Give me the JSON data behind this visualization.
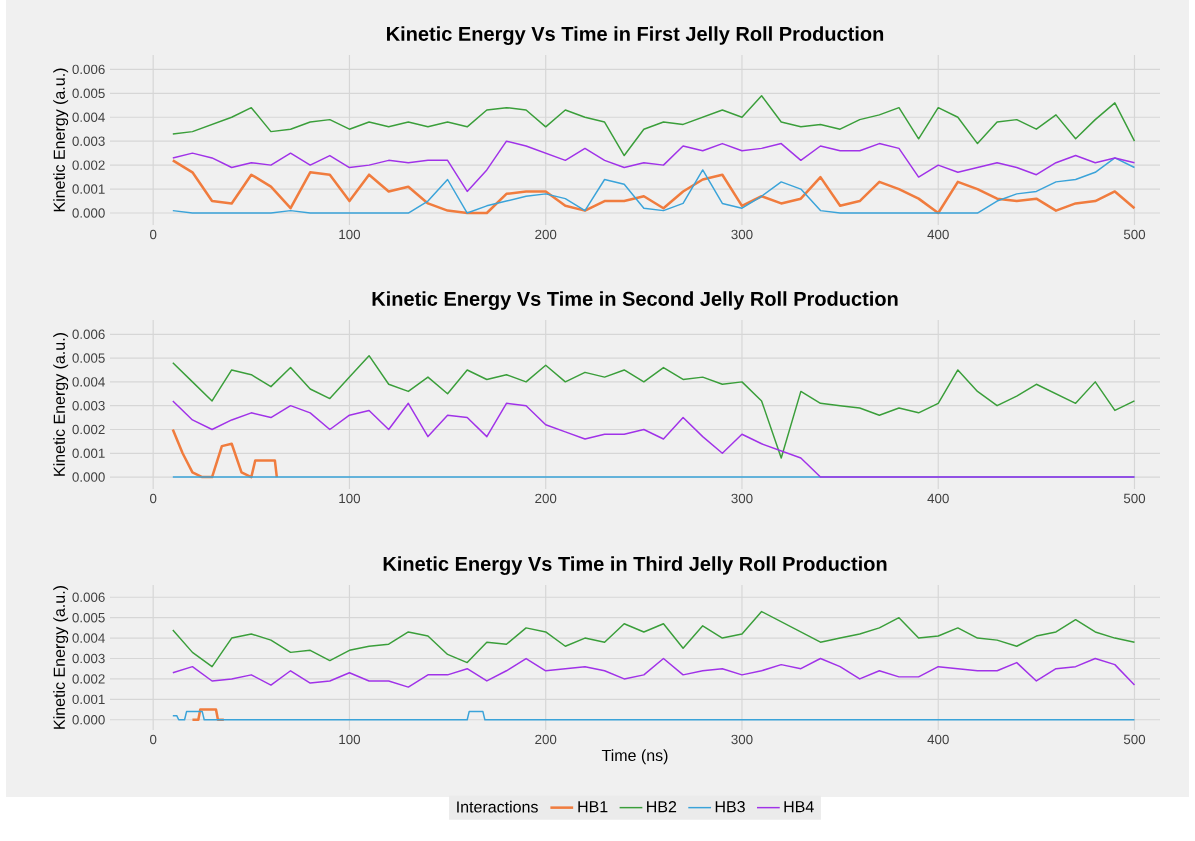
{
  "chart_data": [
    {
      "type": "line",
      "title": "Kinetic Energy Vs Time in First Jelly Roll Production",
      "ylabel": "Kinetic Energy (a.u.)",
      "grid": true,
      "xlim": [
        -22,
        513
      ],
      "ylim": [
        -0.0005,
        0.0066
      ],
      "xticks": [
        0,
        100,
        200,
        300,
        400,
        500
      ],
      "yticks": [
        {
          "value": 0,
          "label": "0.000"
        },
        {
          "value": 0.001,
          "label": "0.001"
        },
        {
          "value": 0.002,
          "label": "0.002"
        },
        {
          "value": 0.003,
          "label": "0.003"
        },
        {
          "value": 0.004,
          "label": "0.004"
        },
        {
          "value": 0.005,
          "label": "0.005"
        },
        {
          "value": 0.006,
          "label": "0.006"
        }
      ],
      "x": [
        10,
        20,
        30,
        40,
        50,
        60,
        70,
        80,
        90,
        100,
        110,
        120,
        130,
        140,
        150,
        160,
        170,
        180,
        190,
        200,
        210,
        220,
        230,
        240,
        250,
        260,
        270,
        280,
        290,
        300,
        310,
        320,
        330,
        340,
        350,
        360,
        370,
        380,
        390,
        400,
        410,
        420,
        430,
        440,
        450,
        460,
        470,
        480,
        490,
        500
      ],
      "series": [
        {
          "color": "#f07c3e",
          "values": [
            0.0022,
            0.0017,
            0.0005,
            0.0004,
            0.0016,
            0.0011,
            0.0002,
            0.0017,
            0.0016,
            0.0005,
            0.0016,
            0.0009,
            0.0011,
            0.0004,
            0.0001,
            0.0,
            0.0,
            0.0008,
            0.0009,
            0.0009,
            0.0003,
            0.0001,
            0.0005,
            0.0005,
            0.0007,
            0.0002,
            0.0009,
            0.0014,
            0.0016,
            0.0003,
            0.0007,
            0.0004,
            0.0006,
            0.0015,
            0.0003,
            0.0005,
            0.0013,
            0.001,
            0.0006,
            0.0,
            0.0013,
            0.001,
            0.0006,
            0.0005,
            0.0006,
            0.0001,
            0.0004,
            0.0005,
            0.0009,
            0.0002
          ]
        },
        {
          "color": "#3a9e3a",
          "values": [
            0.0033,
            0.0034,
            0.0037,
            0.004,
            0.0044,
            0.0034,
            0.0035,
            0.0038,
            0.0039,
            0.0035,
            0.0038,
            0.0036,
            0.0038,
            0.0036,
            0.0038,
            0.0036,
            0.0043,
            0.0044,
            0.0043,
            0.0036,
            0.0043,
            0.004,
            0.0038,
            0.0024,
            0.0035,
            0.0038,
            0.0037,
            0.004,
            0.0043,
            0.004,
            0.0049,
            0.0038,
            0.0036,
            0.0037,
            0.0035,
            0.0039,
            0.0041,
            0.0044,
            0.0031,
            0.0044,
            0.004,
            0.0029,
            0.0038,
            0.0039,
            0.0035,
            0.0041,
            0.0031,
            0.0039,
            0.0046,
            0.003
          ]
        },
        {
          "color": "#3aa3d9",
          "values": [
            0.0001,
            0.0,
            0.0,
            0.0,
            0.0,
            0.0,
            0.0001,
            0.0,
            0.0,
            0.0,
            0.0,
            0.0,
            0.0,
            0.0005,
            0.0014,
            0.0,
            0.0003,
            0.0005,
            0.0007,
            0.0008,
            0.0006,
            0.0001,
            0.0014,
            0.0012,
            0.0002,
            0.0001,
            0.0004,
            0.0018,
            0.0004,
            0.0002,
            0.0007,
            0.0013,
            0.001,
            0.0001,
            0.0,
            0.0,
            0.0,
            0.0,
            0.0,
            0.0,
            0.0,
            0.0,
            0.0005,
            0.0008,
            0.0009,
            0.0013,
            0.0014,
            0.0017,
            0.0023,
            0.0019
          ]
        },
        {
          "color": "#a032e8",
          "values": [
            0.0023,
            0.0025,
            0.0023,
            0.0019,
            0.0021,
            0.002,
            0.0025,
            0.002,
            0.0024,
            0.0019,
            0.002,
            0.0022,
            0.0021,
            0.0022,
            0.0022,
            0.0009,
            0.0018,
            0.003,
            0.0028,
            0.0025,
            0.0022,
            0.0027,
            0.0022,
            0.0019,
            0.0021,
            0.002,
            0.0028,
            0.0026,
            0.0029,
            0.0026,
            0.0027,
            0.0029,
            0.0022,
            0.0028,
            0.0026,
            0.0026,
            0.0029,
            0.0027,
            0.0015,
            0.002,
            0.0017,
            0.0019,
            0.0021,
            0.0019,
            0.0016,
            0.0021,
            0.0024,
            0.0021,
            0.0023,
            0.0021
          ]
        }
      ]
    },
    {
      "type": "line",
      "title": "Kinetic Energy Vs Time in Second Jelly Roll Production",
      "ylabel": "Kinetic Energy (a.u.)",
      "grid": true,
      "xlim": [
        -22,
        513
      ],
      "ylim": [
        -0.0005,
        0.0066
      ],
      "xticks": [
        0,
        100,
        200,
        300,
        400,
        500
      ],
      "yticks": [
        {
          "value": 0,
          "label": "0.000"
        },
        {
          "value": 0.001,
          "label": "0.001"
        },
        {
          "value": 0.002,
          "label": "0.002"
        },
        {
          "value": 0.003,
          "label": "0.003"
        },
        {
          "value": 0.004,
          "label": "0.004"
        },
        {
          "value": 0.005,
          "label": "0.005"
        },
        {
          "value": 0.006,
          "label": "0.006"
        }
      ],
      "x": [
        10,
        20,
        30,
        40,
        50,
        60,
        70,
        80,
        90,
        100,
        110,
        120,
        130,
        140,
        150,
        160,
        170,
        180,
        190,
        200,
        210,
        220,
        230,
        240,
        250,
        260,
        270,
        280,
        290,
        300,
        310,
        320,
        330,
        340,
        350,
        360,
        370,
        380,
        390,
        400,
        410,
        420,
        430,
        440,
        450,
        460,
        470,
        480,
        490,
        500
      ],
      "series": [
        {
          "color": "#f07c3e",
          "x": [
            10,
            15,
            20,
            25,
            30,
            35,
            40,
            45,
            50,
            52,
            62,
            63
          ],
          "values": [
            0.002,
            0.001,
            0.0002,
            0.0,
            0.0,
            0.0013,
            0.0014,
            0.0002,
            0.0,
            0.0007,
            0.0007,
            0.0
          ]
        },
        {
          "color": "#3a9e3a",
          "values": [
            0.0048,
            0.004,
            0.0032,
            0.0045,
            0.0043,
            0.0038,
            0.0046,
            0.0037,
            0.0033,
            0.0042,
            0.0051,
            0.0039,
            0.0036,
            0.0042,
            0.0035,
            0.0045,
            0.0041,
            0.0043,
            0.004,
            0.0047,
            0.004,
            0.0044,
            0.0042,
            0.0045,
            0.004,
            0.0046,
            0.0041,
            0.0042,
            0.0039,
            0.004,
            0.0032,
            0.0008,
            0.0036,
            0.0031,
            0.003,
            0.0029,
            0.0026,
            0.0029,
            0.0027,
            0.0031,
            0.0045,
            0.0036,
            0.003,
            0.0034,
            0.0039,
            0.0035,
            0.0031,
            0.004,
            0.0028,
            0.0032
          ]
        },
        {
          "color": "#3aa3d9",
          "x": [
            10,
            500
          ],
          "values": [
            0.0,
            0.0
          ]
        },
        {
          "color": "#a032e8",
          "values": [
            0.0032,
            0.0024,
            0.002,
            0.0024,
            0.0027,
            0.0025,
            0.003,
            0.0027,
            0.002,
            0.0026,
            0.0028,
            0.002,
            0.0031,
            0.0017,
            0.0026,
            0.0025,
            0.0017,
            0.0031,
            0.003,
            0.0022,
            0.0019,
            0.0016,
            0.0018,
            0.0018,
            0.002,
            0.0016,
            0.0025,
            0.0017,
            0.001,
            0.0018,
            0.0014,
            0.0011,
            0.0008,
            0.0,
            0.0,
            0.0,
            0.0,
            0.0,
            0.0,
            0.0,
            0.0,
            0.0,
            0.0,
            0.0,
            0.0,
            0.0,
            0.0,
            0.0,
            0.0,
            0.0
          ]
        }
      ]
    },
    {
      "type": "line",
      "title": "Kinetic Energy Vs Time in Third Jelly Roll Production",
      "xlabel": "Time (ns)",
      "ylabel": "Kinetic Energy (a.u.)",
      "grid": true,
      "legend": "bottom",
      "legend_title": "Interactions",
      "xlim": [
        -22,
        513
      ],
      "ylim": [
        -0.0005,
        0.0066
      ],
      "xticks": [
        0,
        100,
        200,
        300,
        400,
        500
      ],
      "yticks": [
        {
          "value": 0,
          "label": "0.000"
        },
        {
          "value": 0.001,
          "label": "0.001"
        },
        {
          "value": 0.002,
          "label": "0.002"
        },
        {
          "value": 0.003,
          "label": "0.003"
        },
        {
          "value": 0.004,
          "label": "0.004"
        },
        {
          "value": 0.005,
          "label": "0.005"
        },
        {
          "value": 0.006,
          "label": "0.006"
        }
      ],
      "x": [
        10,
        20,
        30,
        40,
        50,
        60,
        70,
        80,
        90,
        100,
        110,
        120,
        130,
        140,
        150,
        160,
        170,
        180,
        190,
        200,
        210,
        220,
        230,
        240,
        250,
        260,
        270,
        280,
        290,
        300,
        310,
        320,
        330,
        340,
        350,
        360,
        370,
        380,
        390,
        400,
        410,
        420,
        430,
        440,
        450,
        460,
        470,
        480,
        490,
        500
      ],
      "series": [
        {
          "name": "HB1",
          "color": "#f07c3e",
          "x": [
            20,
            23,
            24,
            32,
            33,
            36
          ],
          "values": [
            0.0,
            0.0,
            0.0005,
            0.0005,
            0.0,
            0.0
          ]
        },
        {
          "name": "HB2",
          "color": "#3a9e3a",
          "values": [
            0.0044,
            0.0033,
            0.0026,
            0.004,
            0.0042,
            0.0039,
            0.0033,
            0.0034,
            0.0029,
            0.0034,
            0.0036,
            0.0037,
            0.0043,
            0.0041,
            0.0032,
            0.0028,
            0.0038,
            0.0037,
            0.0045,
            0.0043,
            0.0036,
            0.004,
            0.0038,
            0.0047,
            0.0043,
            0.0047,
            0.0035,
            0.0046,
            0.004,
            0.0042,
            0.0053,
            0.0048,
            0.0043,
            0.0038,
            0.004,
            0.0042,
            0.0045,
            0.005,
            0.004,
            0.0041,
            0.0045,
            0.004,
            0.0039,
            0.0036,
            0.0041,
            0.0043,
            0.0049,
            0.0043,
            0.004,
            0.0038
          ]
        },
        {
          "name": "HB3",
          "color": "#3aa3d9",
          "x": [
            10,
            12,
            13,
            16,
            17,
            25,
            26,
            160,
            161,
            168,
            169,
            500
          ],
          "values": [
            0.0002,
            0.0002,
            0.0,
            0.0,
            0.0004,
            0.0004,
            0.0,
            0.0,
            0.0004,
            0.0004,
            0.0,
            0.0
          ]
        },
        {
          "name": "HB4",
          "color": "#a032e8",
          "values": [
            0.0023,
            0.0026,
            0.0019,
            0.002,
            0.0022,
            0.0017,
            0.0024,
            0.0018,
            0.0019,
            0.0023,
            0.0019,
            0.0019,
            0.0016,
            0.0022,
            0.0022,
            0.0025,
            0.0019,
            0.0024,
            0.003,
            0.0024,
            0.0025,
            0.0026,
            0.0024,
            0.002,
            0.0022,
            0.003,
            0.0022,
            0.0024,
            0.0025,
            0.0022,
            0.0024,
            0.0027,
            0.0025,
            0.003,
            0.0026,
            0.002,
            0.0024,
            0.0021,
            0.0021,
            0.0026,
            0.0025,
            0.0024,
            0.0024,
            0.0028,
            0.0019,
            0.0025,
            0.0026,
            0.003,
            0.0027,
            0.0017
          ]
        }
      ]
    }
  ]
}
